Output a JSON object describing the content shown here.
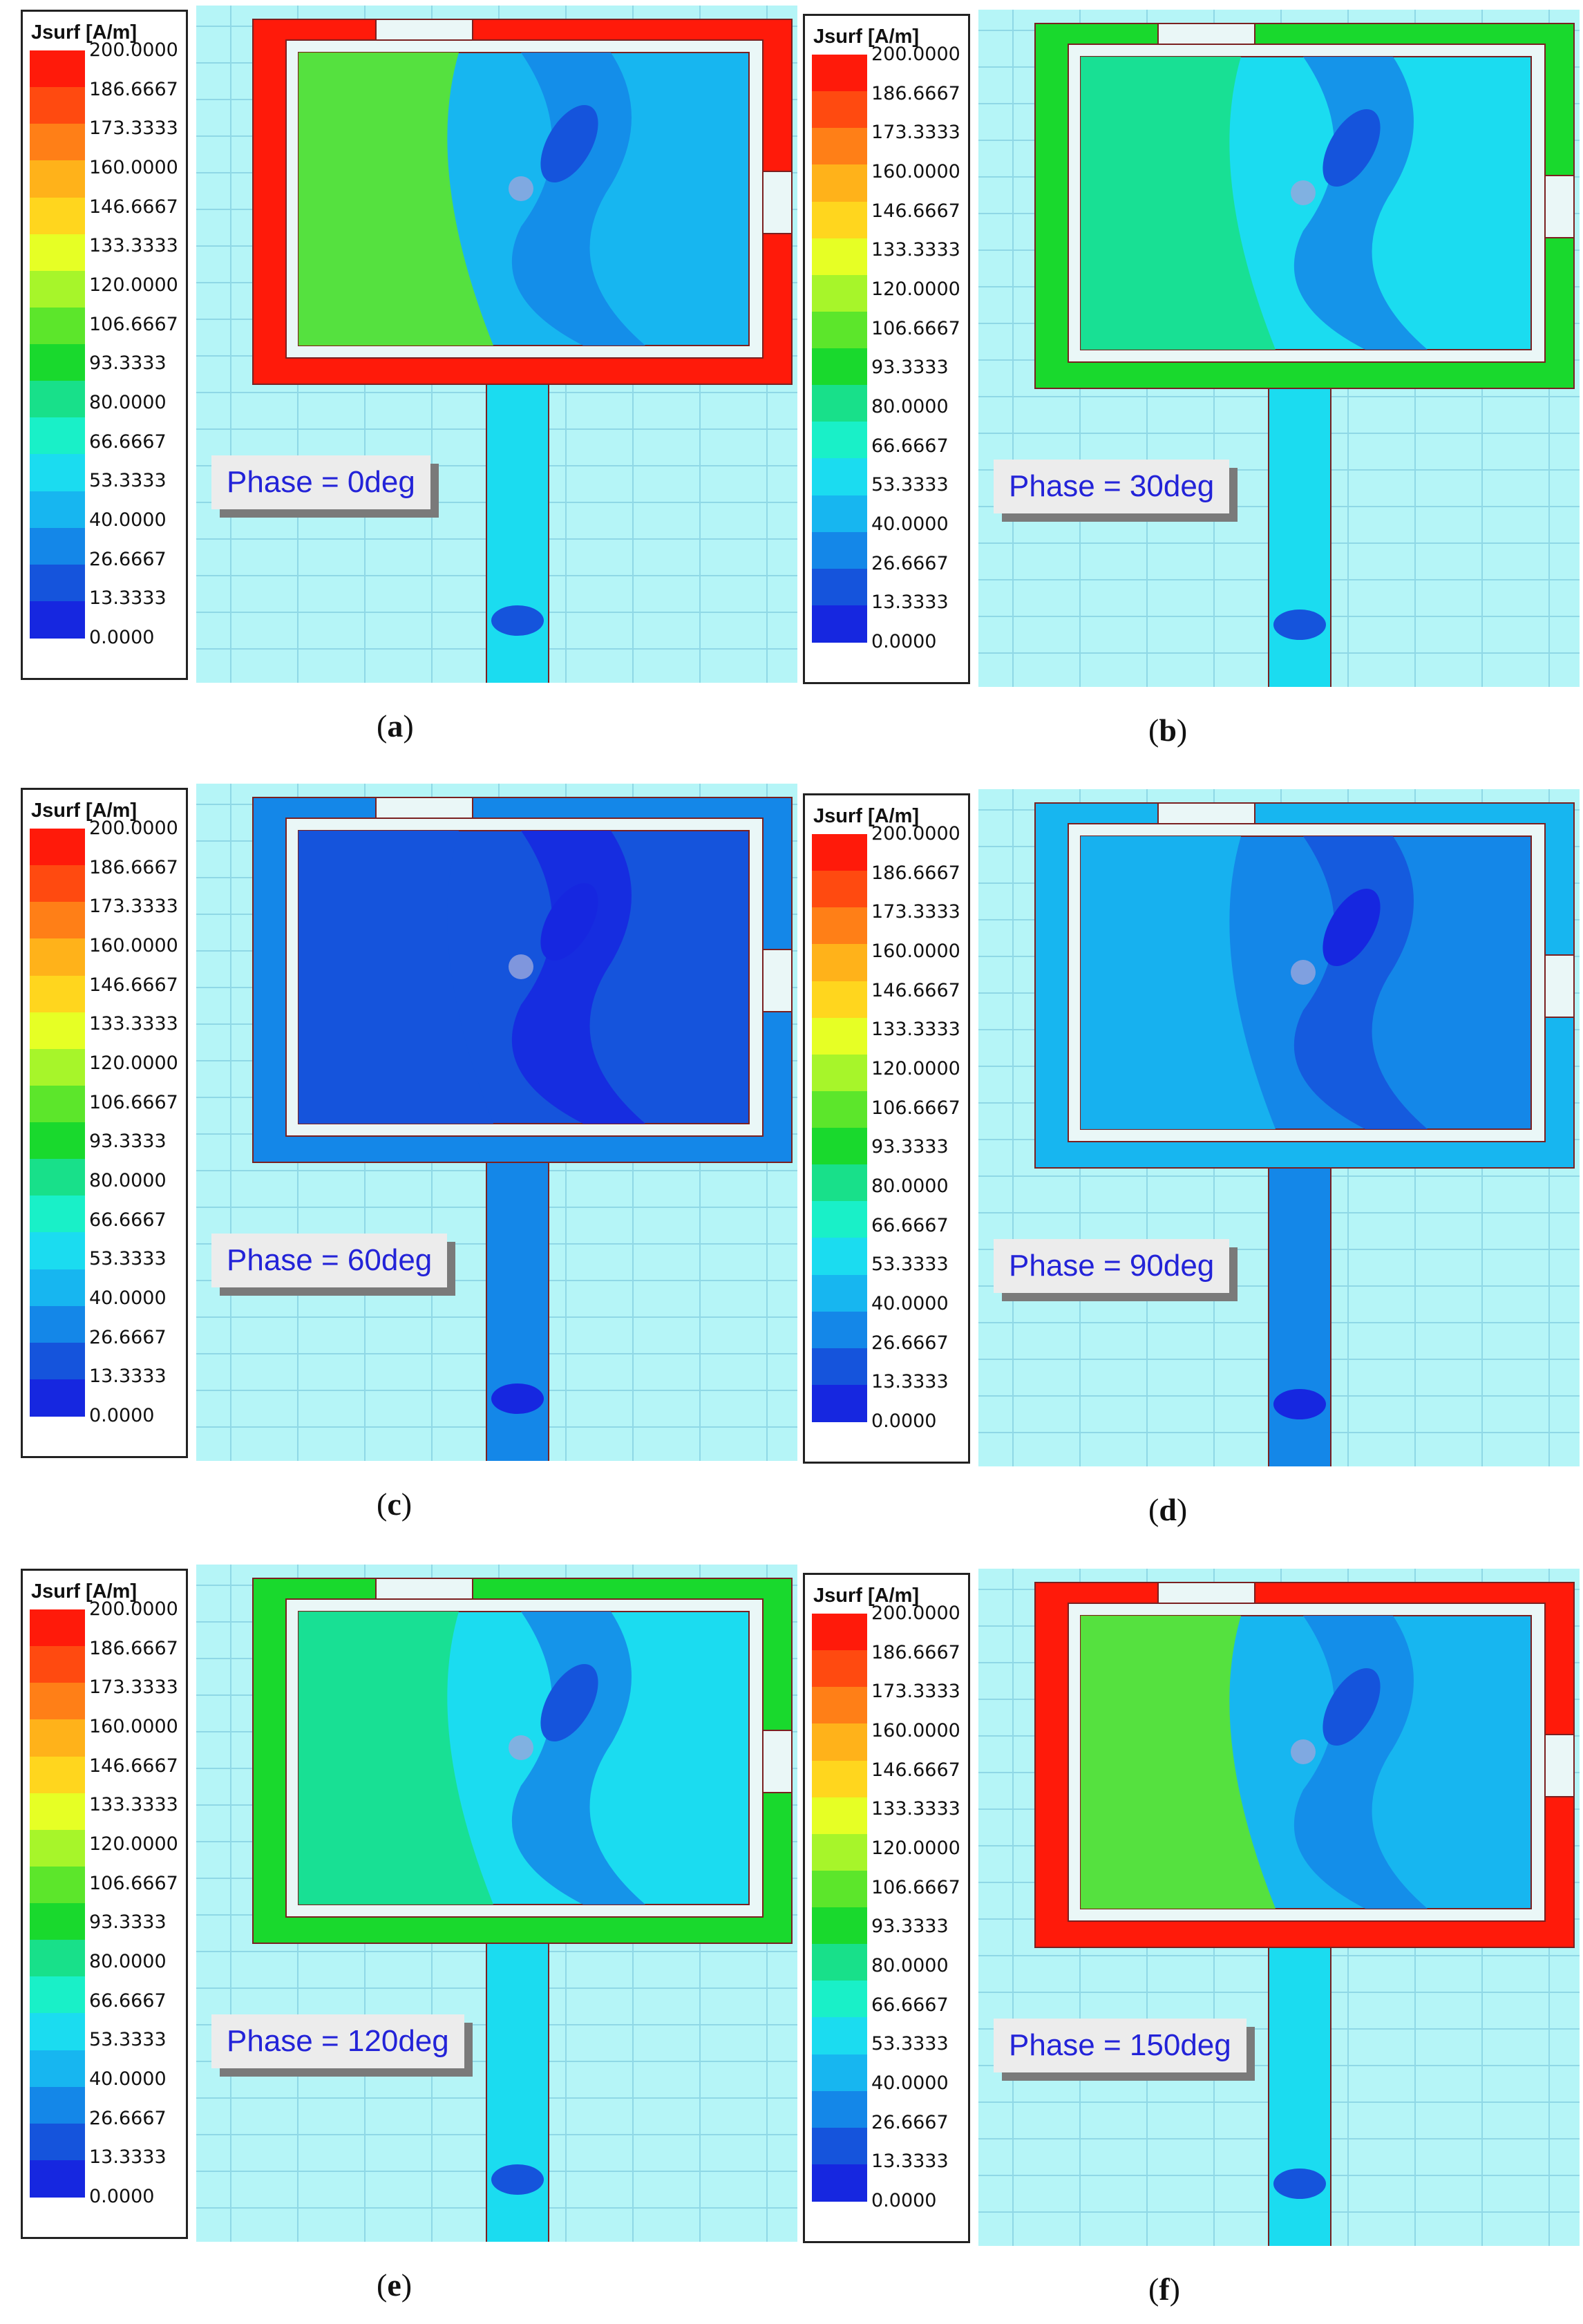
{
  "legend": {
    "title": "Jsurf [A/m]",
    "ticks": [
      "200.0000",
      "186.6667",
      "173.3333",
      "160.0000",
      "146.6667",
      "133.3333",
      "120.0000",
      "106.6667",
      "93.3333",
      "80.0000",
      "66.6667",
      "53.3333",
      "40.0000",
      "26.6667",
      "13.3333",
      "0.0000"
    ],
    "colors": [
      "#ff1a0a",
      "#ff4a10",
      "#ff7f17",
      "#ffb21a",
      "#ffd61e",
      "#e6ff25",
      "#a7f52a",
      "#5ce62b",
      "#19d92d",
      "#18e08a",
      "#19f0c8",
      "#1bdcf0",
      "#17b6f0",
      "#1487e8",
      "#1554dc",
      "#1627e0"
    ]
  },
  "panels": [
    {
      "phase": "Phase = 0deg",
      "letter": "a",
      "intensity": "high"
    },
    {
      "phase": "Phase = 30deg",
      "letter": "b",
      "intensity": "mid-high"
    },
    {
      "phase": "Phase = 60deg",
      "letter": "c",
      "intensity": "low"
    },
    {
      "phase": "Phase = 90deg",
      "letter": "d",
      "intensity": "low-mid"
    },
    {
      "phase": "Phase = 120deg",
      "letter": "e",
      "intensity": "mid-high"
    },
    {
      "phase": "Phase = 150deg",
      "letter": "f",
      "intensity": "high"
    }
  ]
}
